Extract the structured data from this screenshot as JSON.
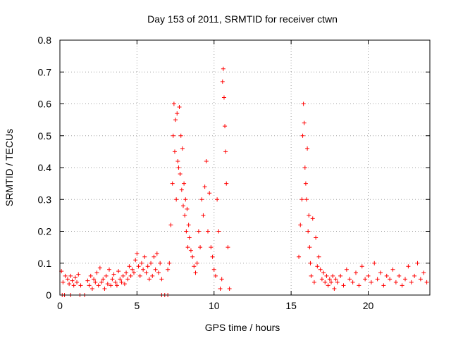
{
  "chart_data": {
    "type": "scatter",
    "title": "Day 153 of 2011, SRMTID for receiver ctwn",
    "xlabel": "GPS time / hours",
    "ylabel": "SRMTID / TECUs",
    "xlim": [
      0,
      24
    ],
    "ylim": [
      0,
      0.8
    ],
    "xticks": [
      0,
      5,
      10,
      15,
      20
    ],
    "xtick_labels": [
      "0",
      "5",
      "10",
      "15",
      "20"
    ],
    "yticks": [
      0,
      0.1,
      0.2,
      0.3,
      0.4,
      0.5,
      0.6,
      0.7,
      0.8
    ],
    "ytick_labels": [
      "0",
      "0.1",
      "0.2",
      "0.3",
      "0.4",
      "0.5",
      "0.6",
      "0.7",
      "0.8"
    ],
    "grid": true,
    "marker": "plus",
    "color": "#ff0000",
    "series": [
      {
        "name": "SRMTID",
        "x": [
          0.1,
          0.2,
          0.35,
          0.5,
          0.6,
          0.7,
          0.8,
          0.9,
          1.0,
          1.1,
          1.2,
          1.35,
          1.8,
          1.9,
          2.0,
          2.1,
          2.2,
          2.3,
          2.4,
          2.5,
          2.6,
          2.7,
          2.8,
          2.9,
          3.0,
          3.1,
          3.2,
          3.3,
          3.4,
          3.5,
          3.6,
          3.7,
          3.8,
          3.9,
          4.0,
          4.1,
          4.2,
          4.3,
          4.4,
          4.5,
          4.6,
          4.7,
          4.8,
          4.9,
          5.0,
          5.1,
          5.2,
          5.3,
          5.4,
          5.5,
          5.6,
          5.7,
          5.8,
          5.9,
          6.0,
          6.1,
          6.2,
          6.3,
          6.4,
          6.5,
          6.6,
          7.0,
          7.1,
          7.2,
          7.3,
          7.35,
          7.4,
          7.45,
          7.5,
          7.55,
          7.6,
          7.65,
          7.7,
          7.75,
          7.8,
          7.85,
          7.9,
          7.95,
          8.0,
          8.05,
          8.1,
          8.15,
          8.2,
          8.25,
          8.3,
          8.35,
          8.4,
          8.5,
          8.6,
          8.7,
          8.8,
          8.9,
          9.0,
          9.1,
          9.2,
          9.3,
          9.4,
          9.5,
          9.6,
          9.7,
          9.8,
          9.9,
          10.0,
          10.1,
          10.2,
          10.3,
          10.4,
          10.5,
          10.55,
          10.6,
          10.65,
          10.7,
          10.75,
          10.8,
          10.9,
          11.0,
          15.5,
          15.6,
          15.7,
          15.75,
          15.8,
          15.85,
          15.9,
          15.95,
          16.0,
          16.05,
          16.1,
          16.15,
          16.2,
          16.25,
          16.3,
          16.4,
          16.5,
          16.6,
          16.7,
          16.8,
          16.9,
          17.0,
          17.1,
          17.2,
          17.3,
          17.4,
          17.5,
          17.6,
          17.7,
          17.8,
          17.9,
          18.0,
          18.2,
          18.4,
          18.6,
          18.8,
          19.0,
          19.2,
          19.4,
          19.6,
          19.8,
          20.0,
          20.2,
          20.4,
          20.6,
          20.8,
          21.0,
          21.2,
          21.4,
          21.6,
          21.8,
          22.0,
          22.2,
          22.4,
          22.6,
          22.8,
          23.0,
          23.2,
          23.4,
          23.6,
          23.8,
          0.15,
          0.3,
          0.7,
          1.3,
          1.6,
          6.6,
          6.8,
          7.0
        ],
        "y": [
          0.075,
          0.04,
          0.06,
          0.05,
          0.035,
          0.06,
          0.045,
          0.03,
          0.055,
          0.04,
          0.065,
          0.03,
          0.045,
          0.03,
          0.06,
          0.02,
          0.05,
          0.04,
          0.07,
          0.03,
          0.085,
          0.04,
          0.05,
          0.02,
          0.06,
          0.035,
          0.08,
          0.03,
          0.05,
          0.065,
          0.04,
          0.03,
          0.075,
          0.05,
          0.04,
          0.06,
          0.035,
          0.07,
          0.05,
          0.09,
          0.06,
          0.08,
          0.07,
          0.11,
          0.13,
          0.09,
          0.06,
          0.1,
          0.08,
          0.12,
          0.07,
          0.09,
          0.05,
          0.1,
          0.06,
          0.12,
          0.08,
          0.13,
          0.07,
          0.1,
          0.05,
          0.08,
          0.1,
          0.22,
          0.35,
          0.5,
          0.6,
          0.45,
          0.55,
          0.3,
          0.57,
          0.42,
          0.4,
          0.59,
          0.38,
          0.5,
          0.33,
          0.46,
          0.28,
          0.35,
          0.25,
          0.3,
          0.2,
          0.27,
          0.15,
          0.22,
          0.18,
          0.14,
          0.12,
          0.09,
          0.07,
          0.1,
          0.2,
          0.15,
          0.3,
          0.25,
          0.34,
          0.42,
          0.2,
          0.32,
          0.15,
          0.12,
          0.08,
          0.06,
          0.3,
          0.2,
          0.02,
          0.05,
          0.67,
          0.71,
          0.62,
          0.53,
          0.45,
          0.35,
          0.15,
          0.02,
          0.12,
          0.22,
          0.3,
          0.5,
          0.6,
          0.54,
          0.4,
          0.35,
          0.3,
          0.46,
          0.2,
          0.25,
          0.15,
          0.1,
          0.06,
          0.24,
          0.04,
          0.18,
          0.09,
          0.12,
          0.08,
          0.05,
          0.07,
          0.04,
          0.06,
          0.03,
          0.05,
          0.04,
          0.06,
          0.02,
          0.05,
          0.04,
          0.06,
          0.03,
          0.08,
          0.05,
          0.04,
          0.07,
          0.03,
          0.09,
          0.05,
          0.06,
          0.04,
          0.1,
          0.05,
          0.07,
          0.03,
          0.06,
          0.05,
          0.08,
          0.04,
          0.06,
          0.03,
          0.05,
          0.09,
          0.04,
          0.06,
          0.1,
          0.05,
          0.07,
          0.04,
          0,
          0,
          0,
          0,
          0,
          0,
          0,
          0
        ]
      }
    ]
  }
}
